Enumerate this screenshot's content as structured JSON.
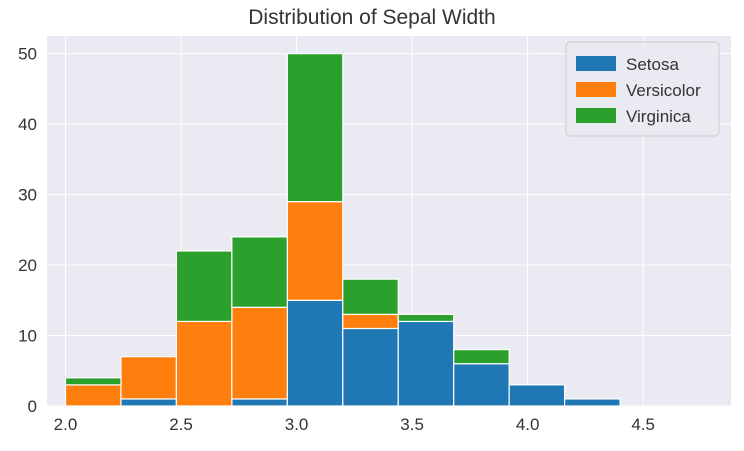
{
  "chart_data": {
    "type": "bar",
    "stacked": true,
    "histogram": true,
    "title": "Distribution of Sepal Width",
    "xlabel": "",
    "ylabel": "",
    "bin_edges": [
      2.0,
      2.24,
      2.48,
      2.72,
      2.96,
      3.2,
      3.44,
      3.68,
      3.92,
      4.16,
      4.4
    ],
    "series": [
      {
        "name": "Setosa",
        "color": "#1f77b4",
        "values": [
          0,
          1,
          0,
          1,
          15,
          11,
          12,
          6,
          3,
          1
        ]
      },
      {
        "name": "Versicolor",
        "color": "#ff7f0e",
        "values": [
          3,
          6,
          12,
          13,
          14,
          2,
          0,
          0,
          0,
          0
        ]
      },
      {
        "name": "Virginica",
        "color": "#2ca02c",
        "values": [
          1,
          0,
          10,
          10,
          21,
          5,
          1,
          2,
          0,
          0
        ]
      }
    ],
    "xlim": [
      1.92,
      4.88
    ],
    "ylim": [
      0,
      52.5
    ],
    "xticks": [
      2.0,
      2.5,
      3.0,
      3.5,
      4.0,
      4.5
    ],
    "xtick_labels": [
      "2.0",
      "2.5",
      "3.0",
      "3.5",
      "4.0",
      "4.5"
    ],
    "yticks": [
      0,
      10,
      20,
      30,
      40,
      50
    ],
    "ytick_labels": [
      "0",
      "10",
      "20",
      "30",
      "40",
      "50"
    ],
    "grid": true,
    "legend_position": "top-right",
    "plot_background": "#eaeaf2"
  }
}
